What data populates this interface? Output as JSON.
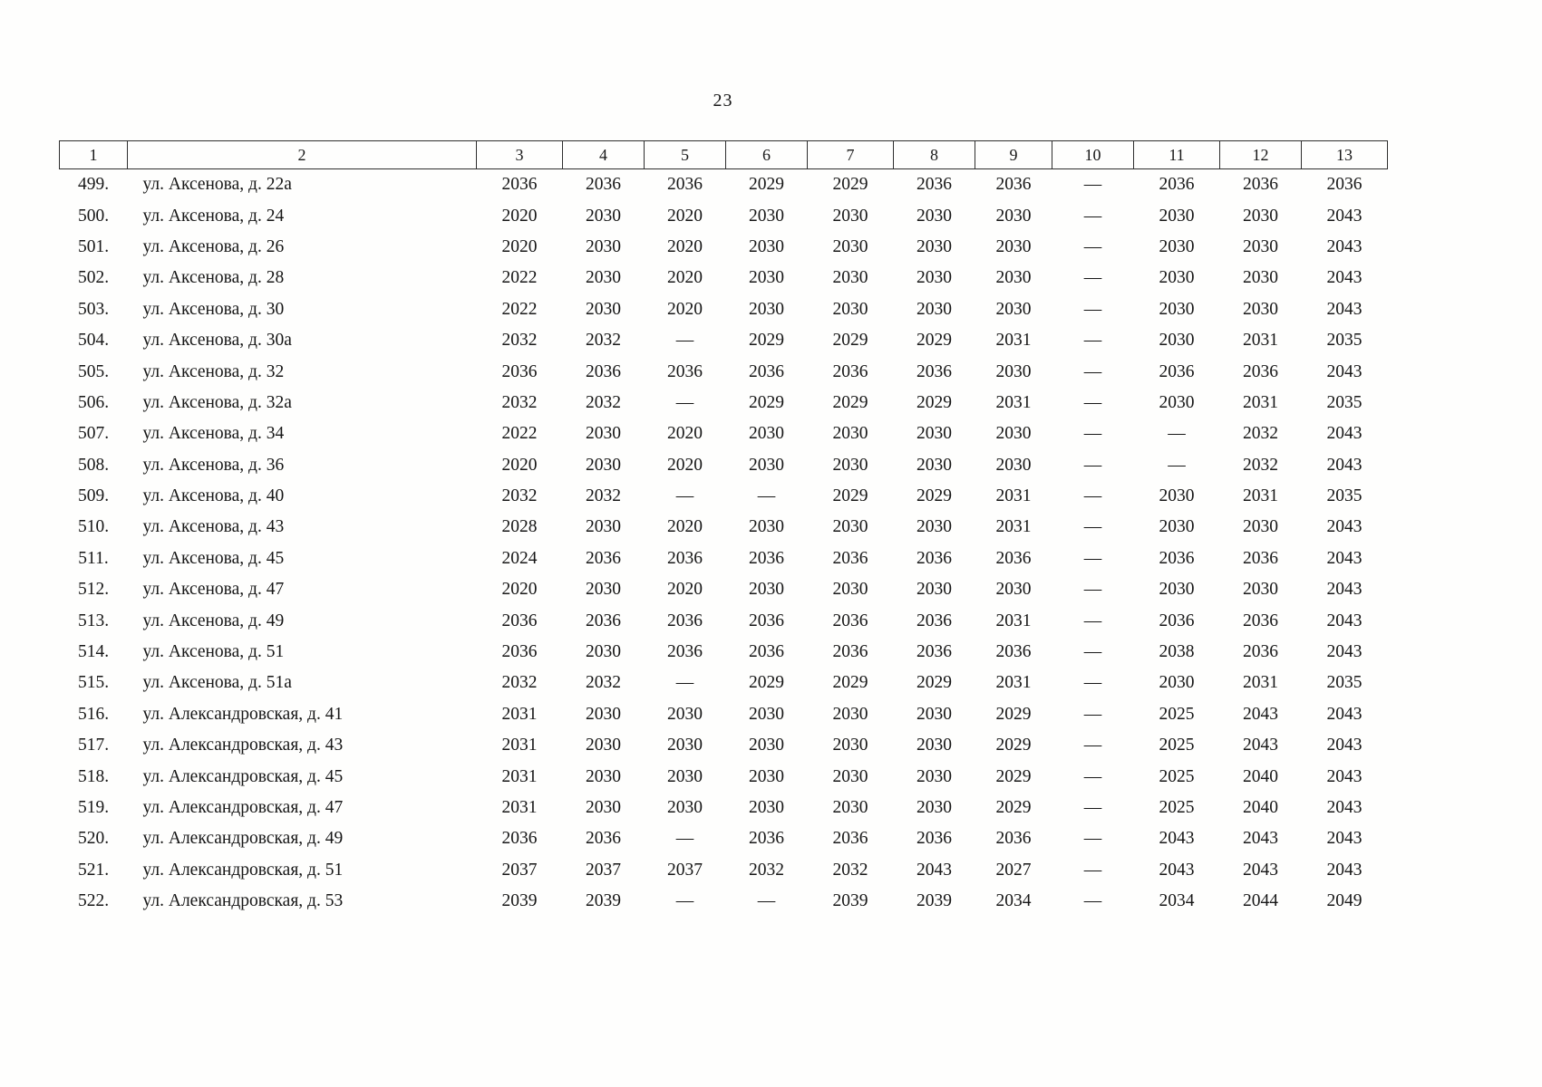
{
  "page_number": "23",
  "table": {
    "headers": [
      "1",
      "2",
      "3",
      "4",
      "5",
      "6",
      "7",
      "8",
      "9",
      "10",
      "11",
      "12",
      "13"
    ],
    "rows": [
      {
        "num": "499.",
        "address": "ул. Аксенова, д. 22а",
        "values": [
          "2036",
          "2036",
          "2036",
          "2029",
          "2029",
          "2036",
          "2036",
          "—",
          "2036",
          "2036",
          "2036"
        ]
      },
      {
        "num": "500.",
        "address": "ул. Аксенова, д. 24",
        "values": [
          "2020",
          "2030",
          "2020",
          "2030",
          "2030",
          "2030",
          "2030",
          "—",
          "2030",
          "2030",
          "2043"
        ]
      },
      {
        "num": "501.",
        "address": "ул. Аксенова, д. 26",
        "values": [
          "2020",
          "2030",
          "2020",
          "2030",
          "2030",
          "2030",
          "2030",
          "—",
          "2030",
          "2030",
          "2043"
        ]
      },
      {
        "num": "502.",
        "address": "ул. Аксенова, д. 28",
        "values": [
          "2022",
          "2030",
          "2020",
          "2030",
          "2030",
          "2030",
          "2030",
          "—",
          "2030",
          "2030",
          "2043"
        ]
      },
      {
        "num": "503.",
        "address": "ул. Аксенова, д. 30",
        "values": [
          "2022",
          "2030",
          "2020",
          "2030",
          "2030",
          "2030",
          "2030",
          "—",
          "2030",
          "2030",
          "2043"
        ]
      },
      {
        "num": "504.",
        "address": "ул. Аксенова, д. 30а",
        "values": [
          "2032",
          "2032",
          "—",
          "2029",
          "2029",
          "2029",
          "2031",
          "—",
          "2030",
          "2031",
          "2035"
        ]
      },
      {
        "num": "505.",
        "address": "ул. Аксенова, д. 32",
        "values": [
          "2036",
          "2036",
          "2036",
          "2036",
          "2036",
          "2036",
          "2030",
          "—",
          "2036",
          "2036",
          "2043"
        ]
      },
      {
        "num": "506.",
        "address": "ул. Аксенова, д. 32а",
        "values": [
          "2032",
          "2032",
          "—",
          "2029",
          "2029",
          "2029",
          "2031",
          "—",
          "2030",
          "2031",
          "2035"
        ]
      },
      {
        "num": "507.",
        "address": "ул. Аксенова, д. 34",
        "values": [
          "2022",
          "2030",
          "2020",
          "2030",
          "2030",
          "2030",
          "2030",
          "—",
          "—",
          "2032",
          "2043"
        ]
      },
      {
        "num": "508.",
        "address": "ул. Аксенова, д. 36",
        "values": [
          "2020",
          "2030",
          "2020",
          "2030",
          "2030",
          "2030",
          "2030",
          "—",
          "—",
          "2032",
          "2043"
        ]
      },
      {
        "num": "509.",
        "address": "ул. Аксенова, д. 40",
        "values": [
          "2032",
          "2032",
          "—",
          "—",
          "2029",
          "2029",
          "2031",
          "—",
          "2030",
          "2031",
          "2035"
        ]
      },
      {
        "num": "510.",
        "address": "ул. Аксенова, д. 43",
        "values": [
          "2028",
          "2030",
          "2020",
          "2030",
          "2030",
          "2030",
          "2031",
          "—",
          "2030",
          "2030",
          "2043"
        ]
      },
      {
        "num": "511.",
        "address": "ул. Аксенова, д. 45",
        "values": [
          "2024",
          "2036",
          "2036",
          "2036",
          "2036",
          "2036",
          "2036",
          "—",
          "2036",
          "2036",
          "2043"
        ]
      },
      {
        "num": "512.",
        "address": "ул. Аксенова, д. 47",
        "values": [
          "2020",
          "2030",
          "2020",
          "2030",
          "2030",
          "2030",
          "2030",
          "—",
          "2030",
          "2030",
          "2043"
        ]
      },
      {
        "num": "513.",
        "address": "ул. Аксенова, д. 49",
        "values": [
          "2036",
          "2036",
          "2036",
          "2036",
          "2036",
          "2036",
          "2031",
          "—",
          "2036",
          "2036",
          "2043"
        ]
      },
      {
        "num": "514.",
        "address": "ул. Аксенова, д. 51",
        "values": [
          "2036",
          "2030",
          "2036",
          "2036",
          "2036",
          "2036",
          "2036",
          "—",
          "2038",
          "2036",
          "2043"
        ]
      },
      {
        "num": "515.",
        "address": "ул. Аксенова, д. 51а",
        "values": [
          "2032",
          "2032",
          "—",
          "2029",
          "2029",
          "2029",
          "2031",
          "—",
          "2030",
          "2031",
          "2035"
        ]
      },
      {
        "num": "516.",
        "address": "ул. Александровская, д. 41",
        "values": [
          "2031",
          "2030",
          "2030",
          "2030",
          "2030",
          "2030",
          "2029",
          "—",
          "2025",
          "2043",
          "2043"
        ]
      },
      {
        "num": "517.",
        "address": "ул. Александровская, д. 43",
        "values": [
          "2031",
          "2030",
          "2030",
          "2030",
          "2030",
          "2030",
          "2029",
          "—",
          "2025",
          "2043",
          "2043"
        ]
      },
      {
        "num": "518.",
        "address": "ул. Александровская, д. 45",
        "values": [
          "2031",
          "2030",
          "2030",
          "2030",
          "2030",
          "2030",
          "2029",
          "—",
          "2025",
          "2040",
          "2043"
        ]
      },
      {
        "num": "519.",
        "address": "ул. Александровская, д. 47",
        "values": [
          "2031",
          "2030",
          "2030",
          "2030",
          "2030",
          "2030",
          "2029",
          "—",
          "2025",
          "2040",
          "2043"
        ]
      },
      {
        "num": "520.",
        "address": "ул. Александровская, д. 49",
        "values": [
          "2036",
          "2036",
          "—",
          "2036",
          "2036",
          "2036",
          "2036",
          "—",
          "2043",
          "2043",
          "2043"
        ]
      },
      {
        "num": "521.",
        "address": "ул. Александровская, д. 51",
        "values": [
          "2037",
          "2037",
          "2037",
          "2032",
          "2032",
          "2043",
          "2027",
          "—",
          "2043",
          "2043",
          "2043"
        ]
      },
      {
        "num": "522.",
        "address": "ул. Александровская, д. 53",
        "values": [
          "2039",
          "2039",
          "—",
          "—",
          "2039",
          "2039",
          "2034",
          "—",
          "2034",
          "2044",
          "2049"
        ]
      }
    ]
  }
}
